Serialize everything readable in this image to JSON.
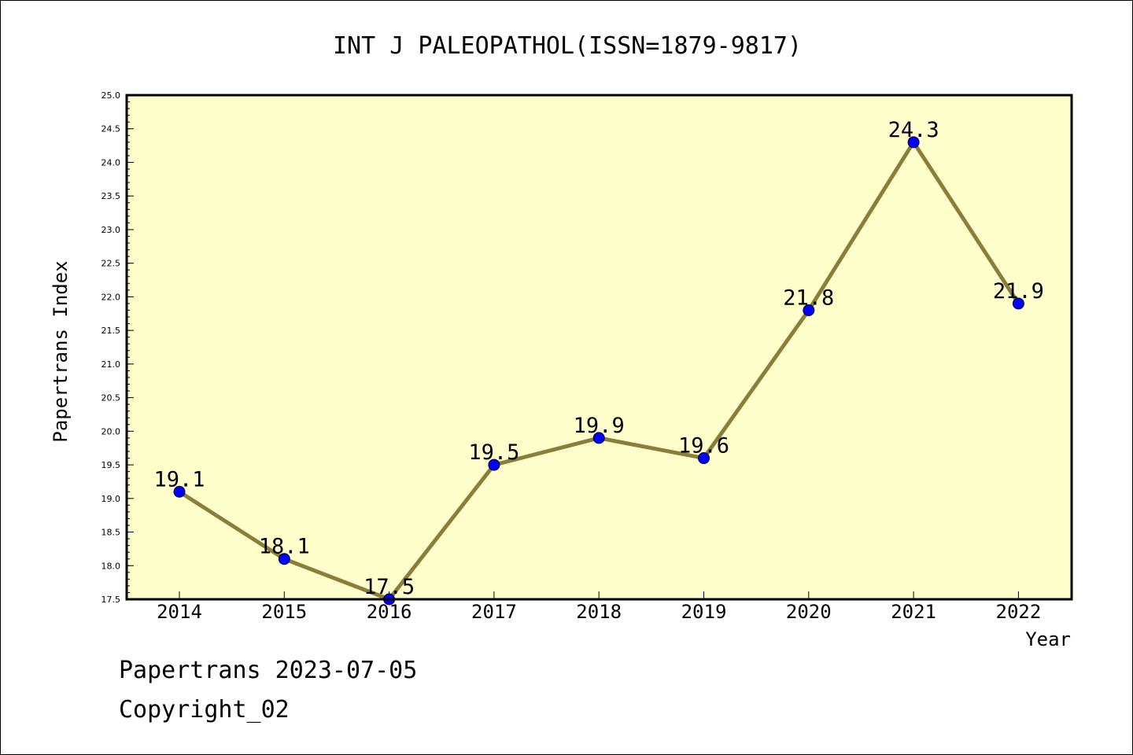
{
  "chart_data": {
    "type": "line",
    "title": "INT J PALEOPATHOL(ISSN=1879-9817)",
    "xlabel": "Year",
    "ylabel": "Papertrans Index",
    "categories": [
      "2014",
      "2015",
      "2016",
      "2017",
      "2018",
      "2019",
      "2020",
      "2021",
      "2022"
    ],
    "values": [
      19.1,
      18.1,
      17.5,
      19.5,
      19.9,
      19.6,
      21.8,
      24.3,
      21.9
    ],
    "data_labels": [
      "19.1",
      "18.1",
      "17.5",
      "19.5",
      "19.9",
      "19.6",
      "21.8",
      "24.3",
      "21.9"
    ],
    "ylim": [
      17.5,
      25.0
    ],
    "yticks": [
      "17.5",
      "18.0",
      "18.5",
      "19.0",
      "19.5",
      "20.0",
      "20.5",
      "21.0",
      "21.5",
      "22.0",
      "22.5",
      "23.0",
      "23.5",
      "24.0",
      "24.5",
      "25.0"
    ],
    "grid": false,
    "legend": "none",
    "colors": {
      "plot_background": "#ffffcc",
      "line": "#8b7d3a",
      "marker": "#0000ff",
      "frame": "#000000"
    }
  },
  "footer": {
    "line1": "Papertrans 2023-07-05",
    "line2": "Copyright_02"
  }
}
